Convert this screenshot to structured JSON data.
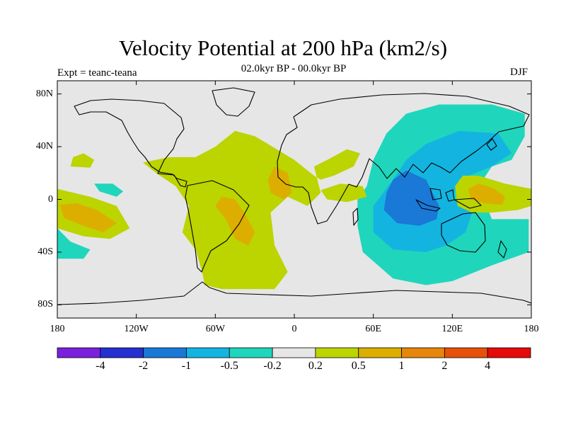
{
  "title": "Velocity Potential at 200 hPa (km2/s)",
  "subtitle": "02.0kyr BP - 00.0kyr BP",
  "expt_label": "Expt = teanc-teana",
  "season": "DJF",
  "chart_data": {
    "type": "heatmap",
    "variable": "Velocity potential anomaly at 200 hPa",
    "units": "km2/s",
    "projection": "cylindrical equidistant",
    "x_range": [
      180,
      -180
    ],
    "y_range": [
      -90,
      90
    ],
    "x_ticks": [
      {
        "lon": -180,
        "label": "180"
      },
      {
        "lon": -120,
        "label": "120W"
      },
      {
        "lon": -60,
        "label": "60W"
      },
      {
        "lon": 0,
        "label": "0"
      },
      {
        "lon": 60,
        "label": "60E"
      },
      {
        "lon": 120,
        "label": "120E"
      },
      {
        "lon": 180,
        "label": "180"
      }
    ],
    "y_ticks": [
      {
        "lat": 80,
        "label": "80N"
      },
      {
        "lat": 40,
        "label": "40N"
      },
      {
        "lat": 0,
        "label": "0"
      },
      {
        "lat": -40,
        "label": "40S"
      },
      {
        "lat": -80,
        "label": "80S"
      }
    ],
    "colorbar": {
      "bins": [
        {
          "color": "#7a1fdb"
        },
        {
          "color": "#2430cf"
        },
        {
          "color": "#1a78d6"
        },
        {
          "color": "#14b4e0"
        },
        {
          "color": "#1fd6bc"
        },
        {
          "color": "#e6e6e6"
        },
        {
          "color": "#bcd400"
        },
        {
          "color": "#dcae00"
        },
        {
          "color": "#e6860a"
        },
        {
          "color": "#e6500a"
        },
        {
          "color": "#e60a0a"
        }
      ],
      "levels": [
        "-4",
        "-2",
        "-1",
        "-0.5",
        "-0.2",
        "0.2",
        "0.5",
        "1",
        "2",
        "4"
      ]
    },
    "regions": [
      {
        "name": "asia-pacific-negative-outer",
        "level": "-0.5 to -0.2",
        "color": "#1fd6bc",
        "points": [
          [
            48,
            -20
          ],
          [
            52,
            -40
          ],
          [
            75,
            -60
          ],
          [
            100,
            -65
          ],
          [
            120,
            -62
          ],
          [
            150,
            -50
          ],
          [
            178,
            -40
          ],
          [
            178,
            -15
          ],
          [
            150,
            -15
          ],
          [
            140,
            10
          ],
          [
            150,
            25
          ],
          [
            165,
            30
          ],
          [
            175,
            48
          ],
          [
            175,
            65
          ],
          [
            150,
            72
          ],
          [
            110,
            72
          ],
          [
            85,
            65
          ],
          [
            70,
            50
          ],
          [
            60,
            30
          ],
          [
            55,
            10
          ],
          [
            48,
            0
          ]
        ]
      },
      {
        "name": "asia-pacific-negative-mid",
        "level": "-1 to -0.5",
        "color": "#14b4e0",
        "points": [
          [
            60,
            -5
          ],
          [
            60,
            -25
          ],
          [
            75,
            -38
          ],
          [
            100,
            -40
          ],
          [
            115,
            -35
          ],
          [
            130,
            -25
          ],
          [
            135,
            -10
          ],
          [
            120,
            0
          ],
          [
            125,
            15
          ],
          [
            150,
            25
          ],
          [
            165,
            35
          ],
          [
            155,
            50
          ],
          [
            125,
            52
          ],
          [
            100,
            42
          ],
          [
            85,
            30
          ],
          [
            75,
            15
          ]
        ]
      },
      {
        "name": "indian-ocean-negative-core",
        "level": "-2 to -1",
        "color": "#1a78d6",
        "points": [
          [
            70,
            5
          ],
          [
            68,
            -8
          ],
          [
            78,
            -18
          ],
          [
            95,
            -20
          ],
          [
            108,
            -15
          ],
          [
            110,
            -5
          ],
          [
            100,
            15
          ],
          [
            85,
            22
          ],
          [
            75,
            15
          ]
        ]
      },
      {
        "name": "maritime-continent-positive",
        "level": "0.2 to 0.5",
        "color": "#bcd400",
        "points": [
          [
            122,
            10
          ],
          [
            124,
            -5
          ],
          [
            135,
            -10
          ],
          [
            150,
            -10
          ],
          [
            170,
            -8
          ],
          [
            180,
            -5
          ],
          [
            180,
            8
          ],
          [
            160,
            12
          ],
          [
            140,
            18
          ],
          [
            128,
            18
          ]
        ]
      },
      {
        "name": "maritime-continent-positive-core",
        "level": "0.5 to 1",
        "color": "#dcae00",
        "points": [
          [
            132,
            8
          ],
          [
            134,
            0
          ],
          [
            145,
            -3
          ],
          [
            158,
            -4
          ],
          [
            160,
            2
          ],
          [
            152,
            8
          ],
          [
            140,
            12
          ]
        ]
      },
      {
        "name": "atlantic-positive",
        "level": "0.2 to 0.5",
        "color": "#bcd400",
        "points": [
          [
            -115,
            28
          ],
          [
            -105,
            20
          ],
          [
            -90,
            10
          ],
          [
            -80,
            -5
          ],
          [
            -85,
            -25
          ],
          [
            -75,
            -38
          ],
          [
            -70,
            -55
          ],
          [
            -68,
            -65
          ],
          [
            -55,
            -68
          ],
          [
            -15,
            -68
          ],
          [
            -5,
            -55
          ],
          [
            -15,
            -35
          ],
          [
            -18,
            -10
          ],
          [
            -5,
            2
          ],
          [
            10,
            -5
          ],
          [
            20,
            5
          ],
          [
            15,
            25
          ],
          [
            25,
            30
          ],
          [
            40,
            38
          ],
          [
            50,
            35
          ],
          [
            45,
            25
          ],
          [
            30,
            18
          ],
          [
            20,
            15
          ],
          [
            15,
            18
          ],
          [
            0,
            30
          ],
          [
            -20,
            42
          ],
          [
            -30,
            48
          ],
          [
            -45,
            52
          ],
          [
            -60,
            40
          ],
          [
            -75,
            32
          ],
          [
            -95,
            32
          ]
        ]
      },
      {
        "name": "south-america-positive-core",
        "level": "0.5 to 1",
        "color": "#dcae00",
        "points": [
          [
            -55,
            2
          ],
          [
            -60,
            -5
          ],
          [
            -52,
            -15
          ],
          [
            -45,
            -30
          ],
          [
            -35,
            -35
          ],
          [
            -30,
            -25
          ],
          [
            -38,
            -10
          ],
          [
            -45,
            0
          ]
        ]
      },
      {
        "name": "north-africa-positive-core",
        "level": "0.5 to 1",
        "color": "#dcae00",
        "points": [
          [
            -20,
            15
          ],
          [
            -18,
            5
          ],
          [
            -8,
            0
          ],
          [
            -2,
            5
          ],
          [
            -5,
            20
          ],
          [
            -15,
            25
          ]
        ]
      },
      {
        "name": "arabia-positive",
        "level": "0.2 to 0.5",
        "color": "#bcd400",
        "points": [
          [
            20,
            7
          ],
          [
            25,
            0
          ],
          [
            40,
            -2
          ],
          [
            55,
            2
          ],
          [
            52,
            10
          ],
          [
            35,
            12
          ]
        ]
      },
      {
        "name": "north-pacific-positive",
        "level": "0.2 to 0.5",
        "color": "#bcd400",
        "points": [
          [
            -170,
            25
          ],
          [
            -168,
            32
          ],
          [
            -160,
            35
          ],
          [
            -152,
            30
          ],
          [
            -155,
            24
          ]
        ]
      },
      {
        "name": "central-pacific-positive",
        "level": "0.2 to 0.5",
        "color": "#bcd400",
        "points": [
          [
            -180,
            8
          ],
          [
            -180,
            -22
          ],
          [
            -160,
            -28
          ],
          [
            -140,
            -30
          ],
          [
            -125,
            -22
          ],
          [
            -135,
            -5
          ],
          [
            -155,
            2
          ]
        ]
      },
      {
        "name": "central-pacific-positive-core",
        "level": "0.5 to 1",
        "color": "#dcae00",
        "points": [
          [
            -178,
            -4
          ],
          [
            -175,
            -14
          ],
          [
            -160,
            -20
          ],
          [
            -145,
            -25
          ],
          [
            -135,
            -18
          ],
          [
            -150,
            -8
          ],
          [
            -165,
            -3
          ]
        ]
      },
      {
        "name": "pacific-negative-small",
        "level": "-0.5 to -0.2",
        "color": "#1fd6bc",
        "points": [
          [
            -152,
            12
          ],
          [
            -148,
            6
          ],
          [
            -135,
            2
          ],
          [
            -130,
            6
          ],
          [
            -138,
            12
          ]
        ]
      },
      {
        "name": "south-pacific-negative",
        "level": "-0.5 to -0.2",
        "color": "#1fd6bc",
        "points": [
          [
            -180,
            -22
          ],
          [
            -180,
            -45
          ],
          [
            -160,
            -45
          ],
          [
            -155,
            -38
          ],
          [
            -170,
            -32
          ]
        ]
      }
    ]
  }
}
